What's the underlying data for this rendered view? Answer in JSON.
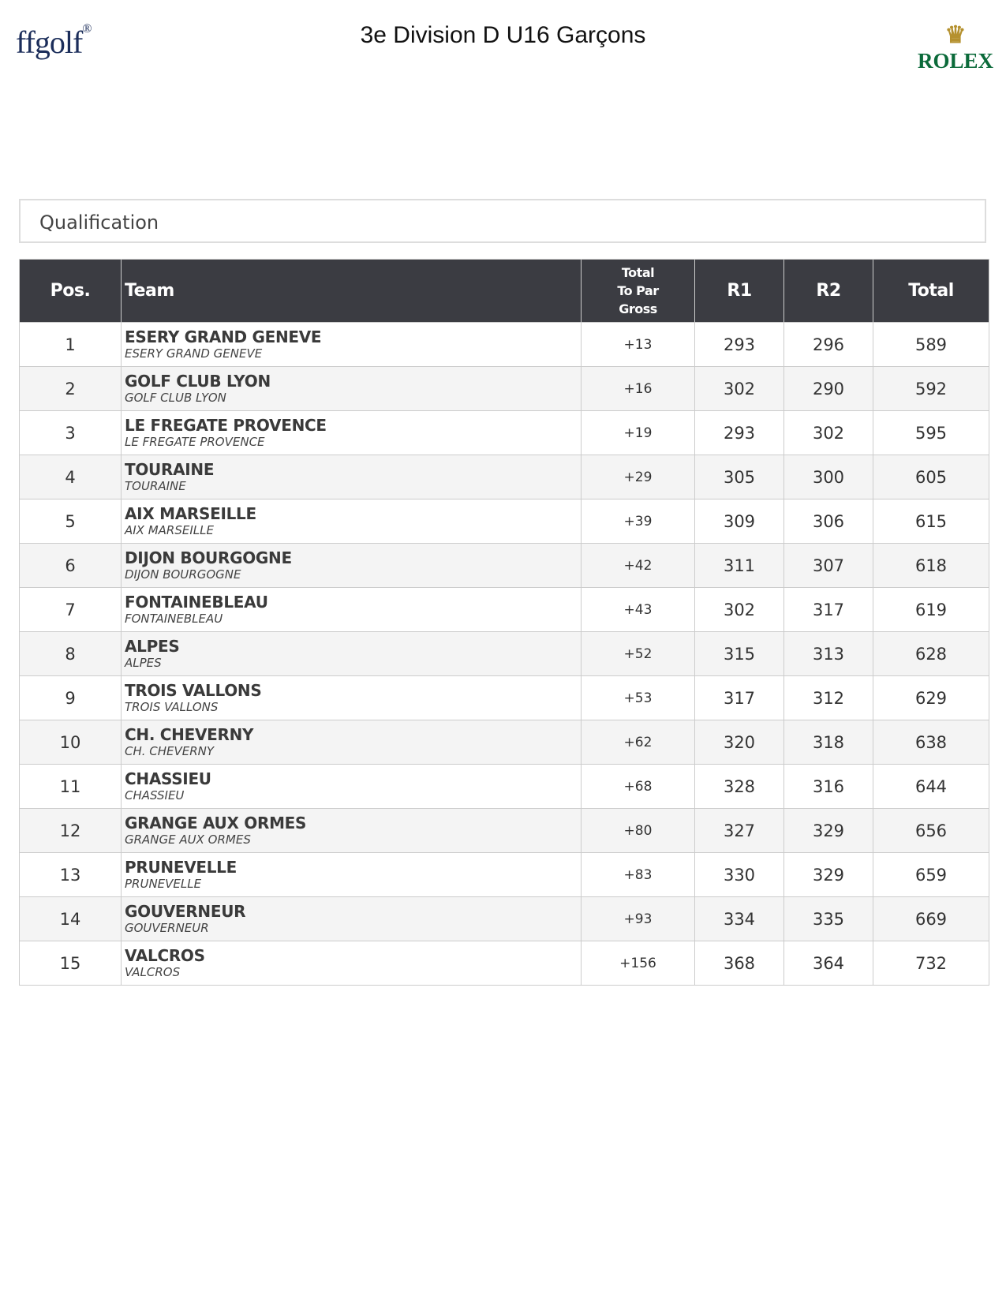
{
  "header": {
    "title": "3e Division D U16 Garçons",
    "left_logo": "ffgolf",
    "right_logo": "ROLEX"
  },
  "section": {
    "title": "Qualification"
  },
  "table": {
    "columns": {
      "pos": "Pos.",
      "team": "Team",
      "topar_1": "Total",
      "topar_2": "To Par",
      "topar_3": "Gross",
      "r1": "R1",
      "r2": "R2",
      "total": "Total"
    },
    "rows": [
      {
        "pos": "1",
        "team": "ESERY GRAND GENEVE",
        "club": "ESERY GRAND GENEVE",
        "topar": "+13",
        "r1": "293",
        "r2": "296",
        "total": "589"
      },
      {
        "pos": "2",
        "team": "GOLF CLUB LYON",
        "club": "GOLF CLUB LYON",
        "topar": "+16",
        "r1": "302",
        "r2": "290",
        "total": "592"
      },
      {
        "pos": "3",
        "team": "LE FREGATE PROVENCE",
        "club": "LE FREGATE PROVENCE",
        "topar": "+19",
        "r1": "293",
        "r2": "302",
        "total": "595"
      },
      {
        "pos": "4",
        "team": "TOURAINE",
        "club": "TOURAINE",
        "topar": "+29",
        "r1": "305",
        "r2": "300",
        "total": "605"
      },
      {
        "pos": "5",
        "team": "AIX MARSEILLE",
        "club": "AIX MARSEILLE",
        "topar": "+39",
        "r1": "309",
        "r2": "306",
        "total": "615"
      },
      {
        "pos": "6",
        "team": "DIJON BOURGOGNE",
        "club": "DIJON BOURGOGNE",
        "topar": "+42",
        "r1": "311",
        "r2": "307",
        "total": "618"
      },
      {
        "pos": "7",
        "team": "FONTAINEBLEAU",
        "club": "FONTAINEBLEAU",
        "topar": "+43",
        "r1": "302",
        "r2": "317",
        "total": "619"
      },
      {
        "pos": "8",
        "team": "ALPES",
        "club": "ALPES",
        "topar": "+52",
        "r1": "315",
        "r2": "313",
        "total": "628"
      },
      {
        "pos": "9",
        "team": "TROIS VALLONS",
        "club": "TROIS VALLONS",
        "topar": "+53",
        "r1": "317",
        "r2": "312",
        "total": "629"
      },
      {
        "pos": "10",
        "team": "CH. CHEVERNY",
        "club": "CH. CHEVERNY",
        "topar": "+62",
        "r1": "320",
        "r2": "318",
        "total": "638"
      },
      {
        "pos": "11",
        "team": "CHASSIEU",
        "club": "CHASSIEU",
        "topar": "+68",
        "r1": "328",
        "r2": "316",
        "total": "644"
      },
      {
        "pos": "12",
        "team": "GRANGE AUX ORMES",
        "club": "GRANGE AUX ORMES",
        "topar": "+80",
        "r1": "327",
        "r2": "329",
        "total": "656"
      },
      {
        "pos": "13",
        "team": "PRUNEVELLE",
        "club": "PRUNEVELLE",
        "topar": "+83",
        "r1": "330",
        "r2": "329",
        "total": "659"
      },
      {
        "pos": "14",
        "team": "GOUVERNEUR",
        "club": "GOUVERNEUR",
        "topar": "+93",
        "r1": "334",
        "r2": "335",
        "total": "669"
      },
      {
        "pos": "15",
        "team": "VALCROS",
        "club": "VALCROS",
        "topar": "+156",
        "r1": "368",
        "r2": "364",
        "total": "732"
      }
    ]
  }
}
